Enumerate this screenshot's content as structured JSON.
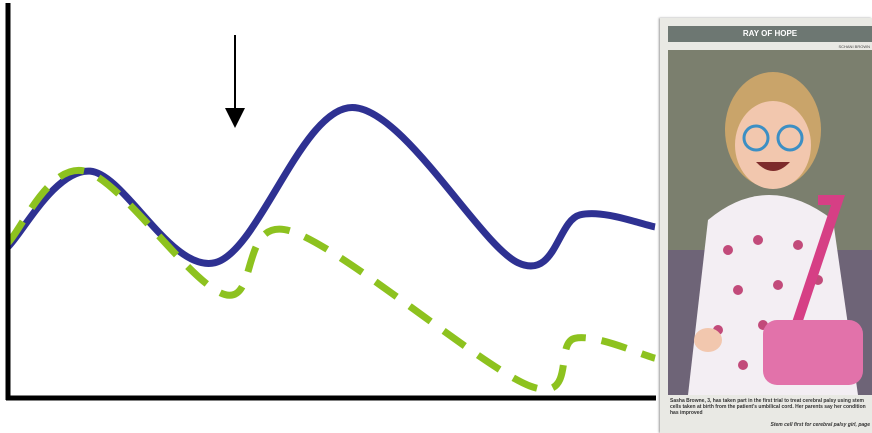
{
  "chart_data": {
    "type": "line",
    "xlim": [
      0,
      100
    ],
    "ylim": [
      0,
      100
    ],
    "series": [
      {
        "color": "#2e3192",
        "style": "solid",
        "x": [
          0,
          12.7,
          32,
          53.2,
          78.8,
          88.4,
          100
        ],
        "values": [
          38,
          57,
          34,
          73,
          34,
          46,
          43
        ]
      },
      {
        "color": "#8dc21f",
        "style": "dashed",
        "x": [
          0,
          11.9,
          33.5,
          43.6,
          80.7,
          87.6,
          100
        ],
        "values": [
          39,
          57,
          26,
          42,
          3,
          15,
          10
        ]
      }
    ]
  },
  "clipping": {
    "headline": "RAY OF HOPE",
    "byline": "SCHANI BROWN",
    "caption": "Sasha Browne, 3, has taken part in the first trial to treat cerebral palsy using stem cells taken at birth from the patient's umbilical cord. Her parents say her condition has improved",
    "reference": "Stem cell first for cerebral palsy girl, page"
  }
}
